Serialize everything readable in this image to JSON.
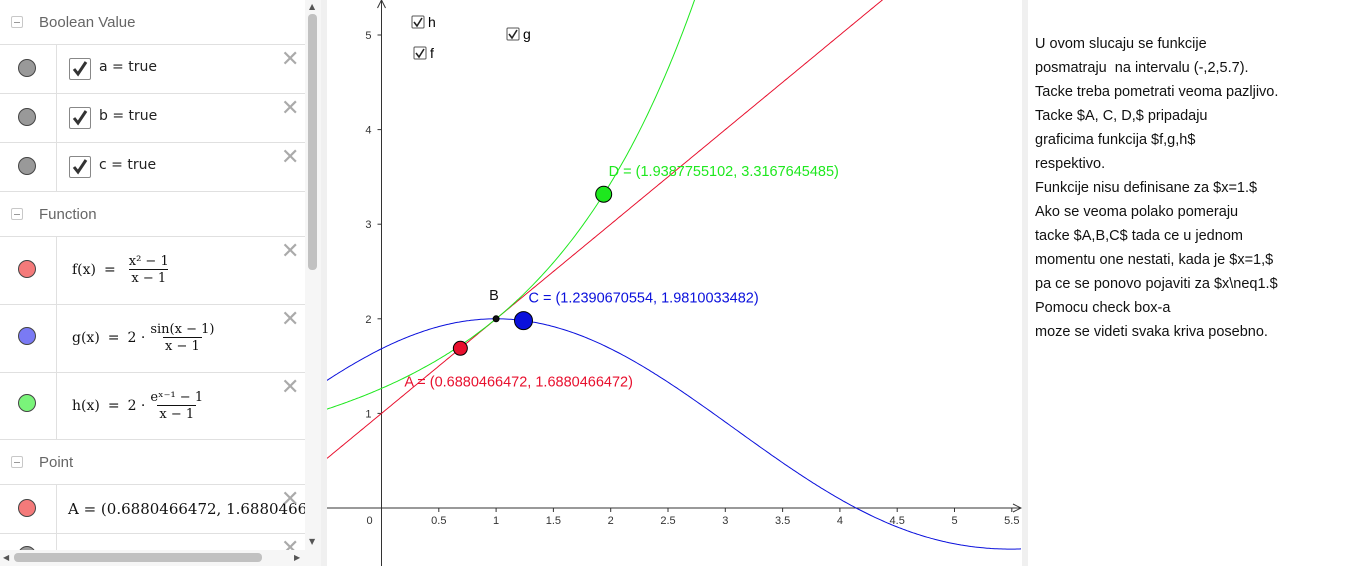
{
  "algebra": {
    "sections": [
      {
        "title": "Boolean Value"
      },
      {
        "title": "Function"
      },
      {
        "title": "Point"
      }
    ],
    "booleans": [
      {
        "text": "a = true",
        "checked": true
      },
      {
        "text": "b = true",
        "checked": true
      },
      {
        "text": "c = true",
        "checked": true
      }
    ],
    "functions": [
      {
        "name": "f(x)",
        "eq": "=",
        "numerator": "x² − 1",
        "denominator": "x − 1",
        "coef": "",
        "color": "#f47a7a"
      },
      {
        "name": "g(x)",
        "eq": "=",
        "coef": "2 ·",
        "numerator": "sin(x − 1)",
        "denominator": "x − 1",
        "color": "#7a7af4"
      },
      {
        "name": "h(x)",
        "eq": "=",
        "coef": "2 ·",
        "numerator": "eˣ⁻¹ − 1",
        "denominator": "x − 1",
        "color": "#7af47a"
      }
    ],
    "points": [
      {
        "text": "A = (0.6880466472, 1.6880466",
        "color": "#f47a7a"
      }
    ]
  },
  "graphics": {
    "checkboxes": [
      {
        "label": "h",
        "checked": true
      },
      {
        "label": "f",
        "checked": true
      },
      {
        "label": "g",
        "checked": true
      }
    ],
    "x_ticks": [
      "0",
      "0.5",
      "1",
      "1.5",
      "2",
      "2.5",
      "3",
      "3.5",
      "4",
      "4.5",
      "5",
      "5.5"
    ],
    "y_ticks": [
      "1",
      "2",
      "3",
      "4",
      "5"
    ],
    "point_labels": {
      "A": "A = (0.6880466472, 1.6880466472)",
      "B": "B",
      "C": "C = (1.2390670554, 1.9810033482)",
      "D": "D = (1.9387755102, 3.3167645485)"
    },
    "colors": {
      "f": "#e8102e",
      "g": "#0a10dc",
      "h": "#1ee81e"
    }
  },
  "chart_data": {
    "type": "line",
    "xlim": [
      -0.47,
      5.6
    ],
    "ylim": [
      -0.5,
      5.4
    ],
    "grid": false,
    "series": [
      {
        "name": "f",
        "formula": "(x^2-1)/(x-1)"
      },
      {
        "name": "g",
        "formula": "2*sin(x-1)/(x-1)"
      },
      {
        "name": "h",
        "formula": "2*(e^(x-1)-1)/(x-1)"
      }
    ],
    "points": [
      {
        "name": "A",
        "x": 0.6880466472,
        "y": 1.6880466472
      },
      {
        "name": "B",
        "x": 1,
        "y": 2
      },
      {
        "name": "C",
        "x": 1.2390670554,
        "y": 1.9810033482
      },
      {
        "name": "D",
        "x": 1.9387755102,
        "y": 3.3167645485
      }
    ]
  },
  "text_panel": {
    "lines": [
      "U ovom slucaju se funkcije",
      "posmatraju  na intervalu (-,2,5.7).",
      "Tacke treba pometrati veoma pazljivo.",
      "Tacke $A, C, D,$ pripadaju",
      "graficima funkcija $f,g,h$",
      "respektivo.",
      "Funkcije nisu definisane za $x=1.$",
      "Ako se veoma polako pomeraju",
      "tacke $A,B,C$ tada ce u jednom",
      "momentu one nestati, kada je $x=1,$",
      "pa ce se ponovo pojaviti za $x\\neq1.$",
      "Pomocu check box-a",
      "moze se videti svaka kriva posebno."
    ]
  }
}
